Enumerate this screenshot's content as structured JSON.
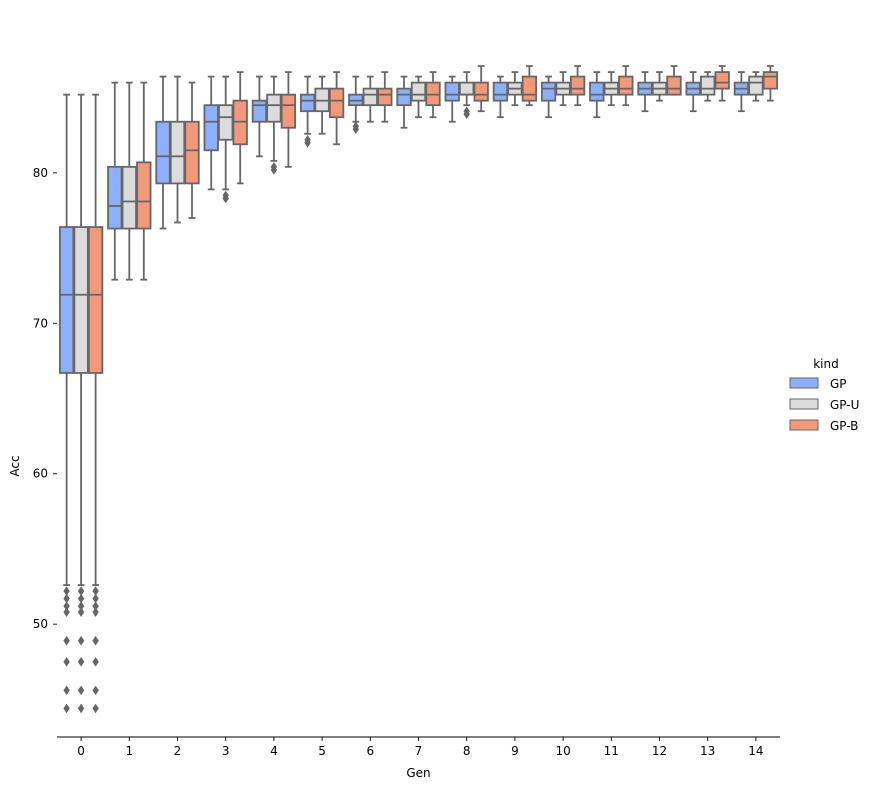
{
  "colors": {
    "GP": "#8db0fe",
    "GP-U": "#dddcdc",
    "GP-B": "#f4987a",
    "box_edge": "#666666",
    "axis": "#000000"
  },
  "chart_data": {
    "type": "boxplot",
    "title": "",
    "xlabel": "Gen",
    "ylabel": "Acc",
    "ylim": [
      42.5,
      88.5
    ],
    "yticks": [
      50,
      60,
      70,
      80
    ],
    "categories": [
      "0",
      "1",
      "2",
      "3",
      "4",
      "5",
      "6",
      "7",
      "8",
      "9",
      "10",
      "11",
      "12",
      "13",
      "14"
    ],
    "legend": {
      "title": "kind",
      "position": "right",
      "entries": [
        "GP",
        "GP-U",
        "GP-B"
      ]
    },
    "series": [
      {
        "name": "GP",
        "boxes": [
          {
            "whislo": 52.6,
            "q1": 66.7,
            "med": 71.9,
            "q3": 76.4,
            "whishi": 85.2,
            "fliers": [
              52.2,
              51.7,
              51.2,
              50.8,
              48.9,
              47.5,
              45.6,
              44.4
            ]
          },
          {
            "whislo": 72.9,
            "q1": 76.3,
            "med": 77.8,
            "q3": 80.4,
            "whishi": 86.0,
            "fliers": []
          },
          {
            "whislo": 76.3,
            "q1": 79.3,
            "med": 81.1,
            "q3": 83.4,
            "whishi": 86.4,
            "fliers": []
          },
          {
            "whislo": 78.9,
            "q1": 81.5,
            "med": 83.4,
            "q3": 84.5,
            "whishi": 86.4,
            "fliers": []
          },
          {
            "whislo": 81.1,
            "q1": 83.4,
            "med": 84.5,
            "q3": 84.8,
            "whishi": 86.4,
            "fliers": []
          },
          {
            "whislo": 82.6,
            "q1": 84.1,
            "med": 84.8,
            "q3": 85.2,
            "whishi": 86.4,
            "fliers": [
              82.2,
              82.0
            ]
          },
          {
            "whislo": 83.4,
            "q1": 84.5,
            "med": 84.8,
            "q3": 85.2,
            "whishi": 86.4,
            "fliers": [
              83.1,
              82.9
            ]
          },
          {
            "whislo": 83.0,
            "q1": 84.5,
            "med": 85.2,
            "q3": 85.6,
            "whishi": 86.4,
            "fliers": []
          },
          {
            "whislo": 83.4,
            "q1": 84.8,
            "med": 85.2,
            "q3": 86.0,
            "whishi": 86.4,
            "fliers": []
          },
          {
            "whislo": 83.7,
            "q1": 84.8,
            "med": 85.2,
            "q3": 86.0,
            "whishi": 86.4,
            "fliers": []
          },
          {
            "whislo": 83.7,
            "q1": 84.8,
            "med": 85.6,
            "q3": 86.0,
            "whishi": 86.4,
            "fliers": []
          },
          {
            "whislo": 83.7,
            "q1": 84.8,
            "med": 85.2,
            "q3": 86.0,
            "whishi": 86.7,
            "fliers": []
          },
          {
            "whislo": 84.1,
            "q1": 85.2,
            "med": 85.6,
            "q3": 86.0,
            "whishi": 86.7,
            "fliers": []
          },
          {
            "whislo": 84.1,
            "q1": 85.2,
            "med": 85.6,
            "q3": 86.0,
            "whishi": 86.7,
            "fliers": []
          },
          {
            "whislo": 84.1,
            "q1": 85.2,
            "med": 85.6,
            "q3": 86.0,
            "whishi": 86.7,
            "fliers": []
          }
        ]
      },
      {
        "name": "GP-U",
        "boxes": [
          {
            "whislo": 52.6,
            "q1": 66.7,
            "med": 71.9,
            "q3": 76.4,
            "whishi": 85.2,
            "fliers": [
              52.2,
              51.7,
              51.2,
              50.8,
              48.9,
              47.5,
              45.6,
              44.4
            ]
          },
          {
            "whislo": 72.9,
            "q1": 76.3,
            "med": 78.1,
            "q3": 80.4,
            "whishi": 86.0,
            "fliers": []
          },
          {
            "whislo": 76.7,
            "q1": 79.3,
            "med": 81.1,
            "q3": 83.4,
            "whishi": 86.4,
            "fliers": []
          },
          {
            "whislo": 78.9,
            "q1": 82.2,
            "med": 83.7,
            "q3": 84.5,
            "whishi": 86.4,
            "fliers": [
              78.5,
              78.3
            ]
          },
          {
            "whislo": 80.8,
            "q1": 83.4,
            "med": 84.5,
            "q3": 85.2,
            "whishi": 86.4,
            "fliers": [
              80.4,
              80.2
            ]
          },
          {
            "whislo": 82.6,
            "q1": 84.1,
            "med": 84.8,
            "q3": 85.6,
            "whishi": 86.4,
            "fliers": []
          },
          {
            "whislo": 83.4,
            "q1": 84.5,
            "med": 85.2,
            "q3": 85.6,
            "whishi": 86.4,
            "fliers": []
          },
          {
            "whislo": 83.7,
            "q1": 84.8,
            "med": 85.2,
            "q3": 86.0,
            "whishi": 86.4,
            "fliers": []
          },
          {
            "whislo": 84.5,
            "q1": 85.2,
            "med": 85.2,
            "q3": 86.0,
            "whishi": 86.7,
            "fliers": [
              84.1,
              83.9
            ]
          },
          {
            "whislo": 84.5,
            "q1": 85.2,
            "med": 85.6,
            "q3": 86.0,
            "whishi": 86.7,
            "fliers": []
          },
          {
            "whislo": 84.5,
            "q1": 85.2,
            "med": 85.6,
            "q3": 86.0,
            "whishi": 86.7,
            "fliers": []
          },
          {
            "whislo": 84.5,
            "q1": 85.2,
            "med": 85.6,
            "q3": 86.0,
            "whishi": 86.7,
            "fliers": []
          },
          {
            "whislo": 84.8,
            "q1": 85.2,
            "med": 85.6,
            "q3": 86.0,
            "whishi": 86.7,
            "fliers": []
          },
          {
            "whislo": 84.8,
            "q1": 85.2,
            "med": 85.6,
            "q3": 86.4,
            "whishi": 86.7,
            "fliers": []
          },
          {
            "whislo": 84.8,
            "q1": 85.2,
            "med": 86.0,
            "q3": 86.4,
            "whishi": 86.7,
            "fliers": []
          }
        ]
      },
      {
        "name": "GP-B",
        "boxes": [
          {
            "whislo": 52.6,
            "q1": 66.7,
            "med": 71.9,
            "q3": 76.4,
            "whishi": 85.2,
            "fliers": [
              52.2,
              51.7,
              51.2,
              50.8,
              48.9,
              47.5,
              45.6,
              44.4
            ]
          },
          {
            "whislo": 72.9,
            "q1": 76.3,
            "med": 78.1,
            "q3": 80.7,
            "whishi": 86.0,
            "fliers": []
          },
          {
            "whislo": 77.0,
            "q1": 79.3,
            "med": 81.5,
            "q3": 83.4,
            "whishi": 86.0,
            "fliers": []
          },
          {
            "whislo": 79.3,
            "q1": 81.9,
            "med": 83.4,
            "q3": 84.8,
            "whishi": 86.7,
            "fliers": []
          },
          {
            "whislo": 80.4,
            "q1": 83.0,
            "med": 84.5,
            "q3": 85.2,
            "whishi": 86.7,
            "fliers": []
          },
          {
            "whislo": 81.9,
            "q1": 83.7,
            "med": 84.8,
            "q3": 85.6,
            "whishi": 86.7,
            "fliers": []
          },
          {
            "whislo": 83.4,
            "q1": 84.5,
            "med": 85.2,
            "q3": 85.6,
            "whishi": 86.7,
            "fliers": []
          },
          {
            "whislo": 83.7,
            "q1": 84.5,
            "med": 85.2,
            "q3": 86.0,
            "whishi": 86.7,
            "fliers": []
          },
          {
            "whislo": 84.1,
            "q1": 84.8,
            "med": 85.2,
            "q3": 86.0,
            "whishi": 87.1,
            "fliers": []
          },
          {
            "whislo": 84.5,
            "q1": 84.8,
            "med": 85.2,
            "q3": 86.4,
            "whishi": 87.1,
            "fliers": []
          },
          {
            "whislo": 84.5,
            "q1": 85.2,
            "med": 85.6,
            "q3": 86.4,
            "whishi": 87.1,
            "fliers": []
          },
          {
            "whislo": 84.5,
            "q1": 85.2,
            "med": 85.6,
            "q3": 86.4,
            "whishi": 87.1,
            "fliers": []
          },
          {
            "whislo": 85.2,
            "q1": 85.2,
            "med": 85.6,
            "q3": 86.4,
            "whishi": 87.1,
            "fliers": []
          },
          {
            "whislo": 84.8,
            "q1": 85.6,
            "med": 86.0,
            "q3": 86.7,
            "whishi": 87.1,
            "fliers": []
          },
          {
            "whislo": 84.8,
            "q1": 85.6,
            "med": 86.4,
            "q3": 86.7,
            "whishi": 87.1,
            "fliers": []
          }
        ]
      }
    ]
  }
}
